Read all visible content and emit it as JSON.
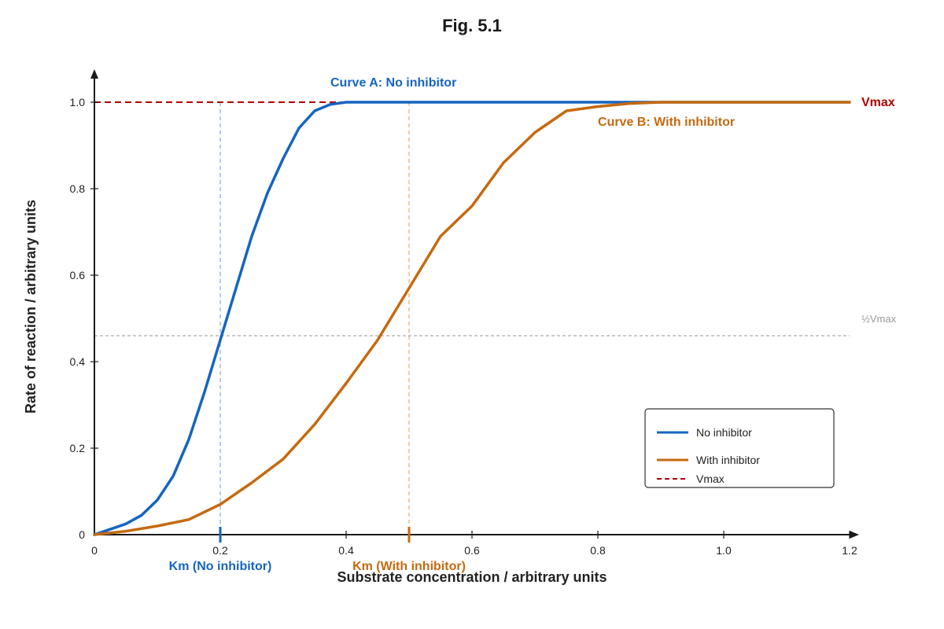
{
  "chart_data": {
    "type": "line",
    "title": "Fig. 5.1",
    "xlabel": "Substrate concentration / arbitrary units",
    "ylabel": "Rate of reaction / arbitrary units",
    "xlim": [
      0,
      1.2
    ],
    "ylim": [
      0,
      1.0
    ],
    "x_ticks": [
      0,
      0.2,
      0.4,
      0.6,
      0.8,
      1.0,
      1.2
    ],
    "x_tick_labels": [
      "0",
      "0.2",
      "0.4",
      "0.6",
      "0.8",
      "1.0",
      "1.2"
    ],
    "y_ticks": [
      0,
      0.2,
      0.4,
      0.6,
      0.8,
      1.0
    ],
    "y_tick_labels": [
      "0",
      "0.2",
      "0.4",
      "0.6",
      "0.8",
      "1.0"
    ],
    "grid": false,
    "series": [
      {
        "name": "No inhibitor",
        "annotation": "Curve A: No inhibitor",
        "color": "#1565c0",
        "x": [
          0,
          0.05,
          0.075,
          0.1,
          0.125,
          0.15,
          0.175,
          0.2,
          0.225,
          0.25,
          0.275,
          0.3,
          0.325,
          0.35,
          0.375,
          0.4,
          0.5,
          0.6,
          0.8,
          1.0,
          1.2
        ],
        "y": [
          0,
          0.025,
          0.045,
          0.08,
          0.135,
          0.22,
          0.33,
          0.45,
          0.57,
          0.69,
          0.79,
          0.87,
          0.94,
          0.98,
          0.995,
          1.0,
          1.0,
          1.0,
          1.0,
          1.0,
          1.0
        ]
      },
      {
        "name": "With inhibitor",
        "annotation": "Curve B: With inhibitor",
        "color": "#c56a10",
        "x": [
          0,
          0.05,
          0.1,
          0.15,
          0.2,
          0.25,
          0.3,
          0.35,
          0.4,
          0.45,
          0.5,
          0.55,
          0.6,
          0.65,
          0.7,
          0.75,
          0.8,
          0.85,
          0.9,
          1.0,
          1.2
        ],
        "y": [
          0,
          0.008,
          0.02,
          0.035,
          0.07,
          0.12,
          0.175,
          0.255,
          0.35,
          0.45,
          0.57,
          0.69,
          0.76,
          0.86,
          0.93,
          0.98,
          0.99,
          0.997,
          1.0,
          1.0,
          1.0
        ]
      }
    ],
    "reference_lines": {
      "vmax": {
        "label": "Vmax",
        "value": 1.0,
        "color": "#b00000"
      },
      "half_vmax": {
        "label": "½Vmax",
        "value": 0.46,
        "color": "#aaaaaa"
      }
    },
    "km_markers": [
      {
        "label": "Km (No inhibitor)",
        "x": 0.2,
        "color": "#1565c0"
      },
      {
        "label": "Km (With inhibitor)",
        "x": 0.5,
        "color": "#c56a10"
      }
    ],
    "legend": {
      "position": "bottom-right",
      "entries": [
        {
          "label": "No inhibitor",
          "color": "#1565c0",
          "style": "solid"
        },
        {
          "label": "With inhibitor",
          "color": "#c56a10",
          "style": "solid"
        },
        {
          "label": "Vmax",
          "color": "#b00000",
          "style": "dashed"
        }
      ]
    }
  }
}
